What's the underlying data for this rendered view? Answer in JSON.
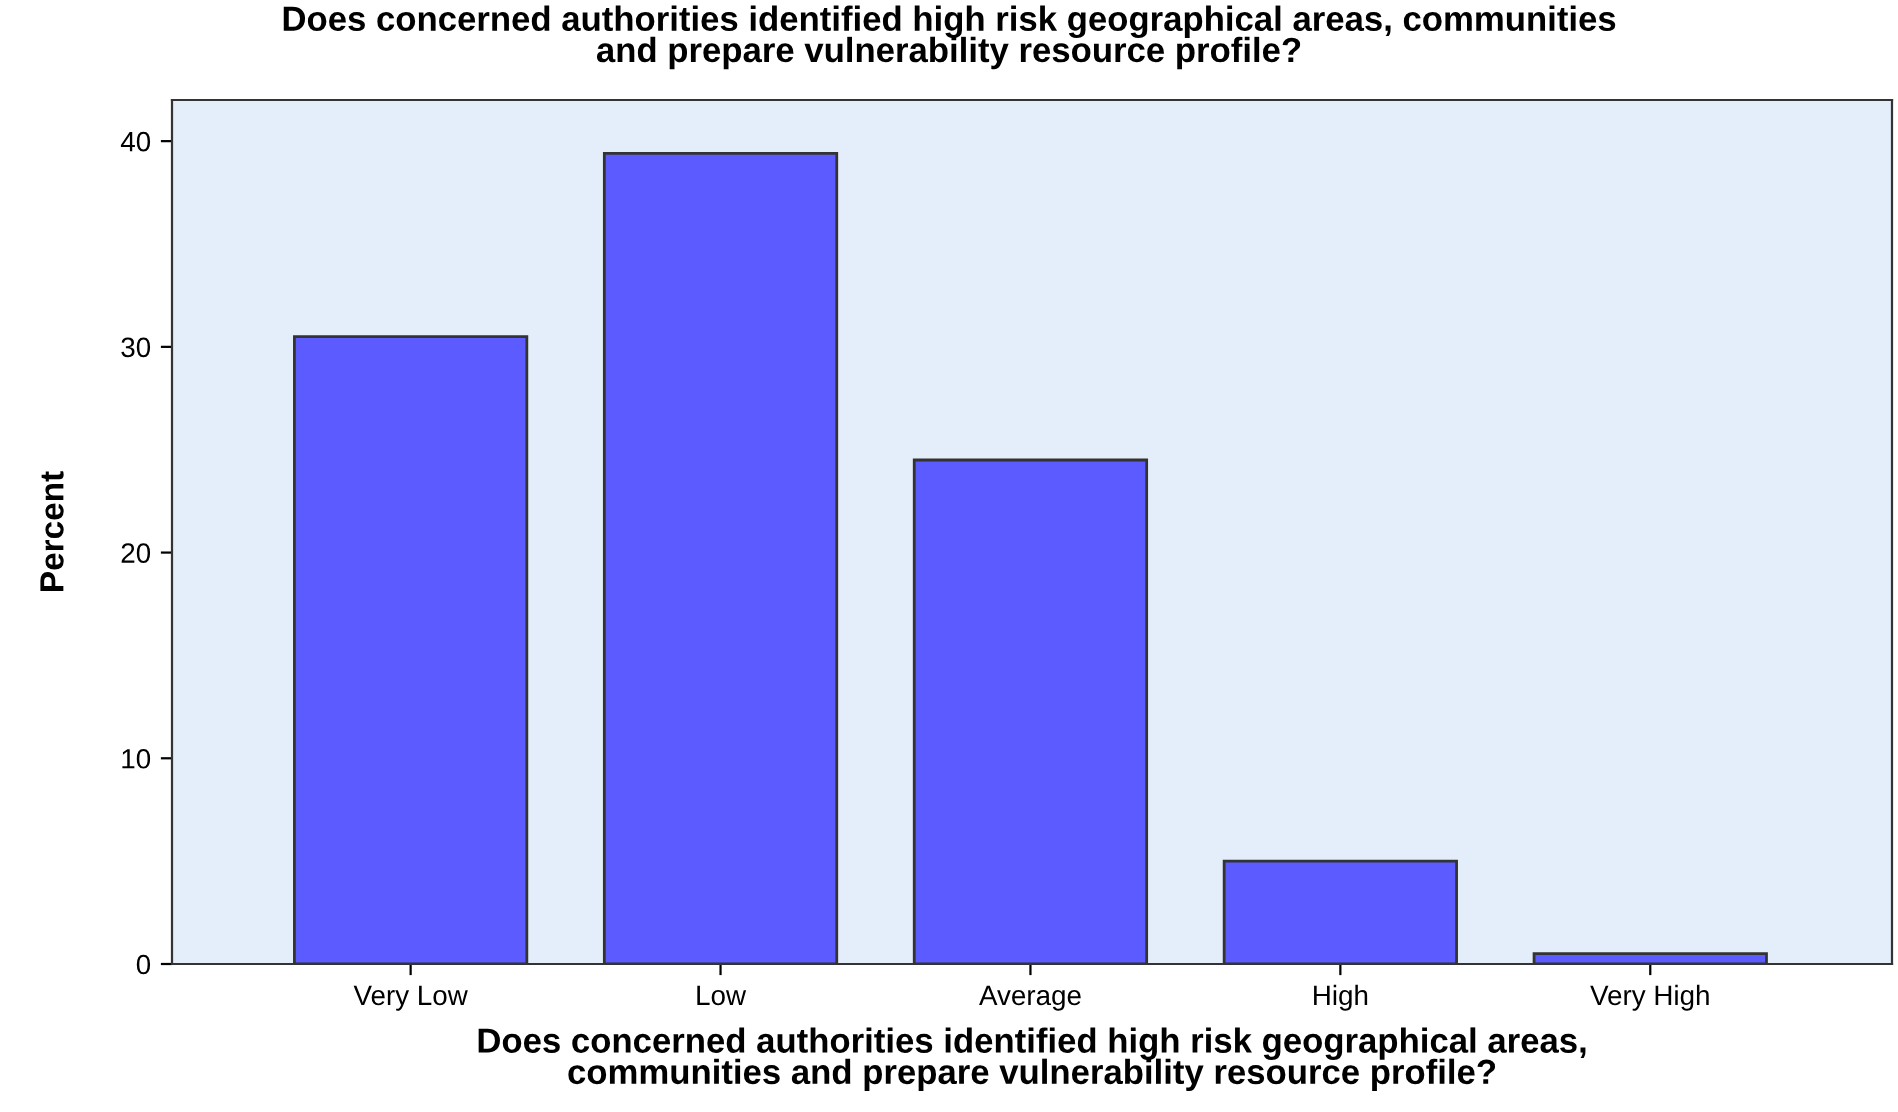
{
  "chart_data": {
    "type": "bar",
    "title": "Does concerned authorities identified high risk geographical areas, communities\nand prepare vulnerability resource profile?",
    "xlabel": "Does concerned authorities identified high risk geographical areas,\ncommunities and prepare vulnerability resource profile?",
    "ylabel": "Percent",
    "categories": [
      "Very Low",
      "Low",
      "Average",
      "High",
      "Very High"
    ],
    "values": [
      30.5,
      39.4,
      24.5,
      5.0,
      0.5
    ],
    "color": "#5b5bff",
    "ylim": [
      0,
      42
    ],
    "yticks": [
      0,
      10,
      20,
      30,
      40
    ],
    "grid": false
  }
}
